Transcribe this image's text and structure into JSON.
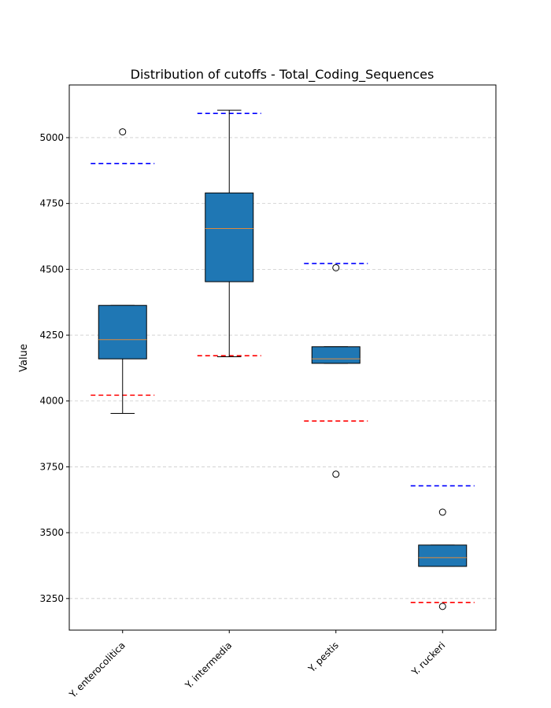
{
  "chart_data": {
    "type": "box",
    "title": "Distribution of cutoffs - Total_Coding_Sequences",
    "xlabel": "",
    "ylabel": "Value",
    "ylim": [
      3130,
      5200
    ],
    "yticks": [
      3250,
      3500,
      3750,
      4000,
      4250,
      4500,
      4750,
      5000
    ],
    "grid": "horizontal dashed",
    "colors": {
      "box_fill": "#1f77b4",
      "median": "#e08a3c",
      "upper_cutoff": "#0000ff",
      "lower_cutoff": "#ff0000",
      "grid": "#cccccc"
    },
    "categories": [
      "Y. enterocolitica",
      "Y. intermedia",
      "Y. pestis",
      "Y. ruckeri"
    ],
    "boxes": [
      {
        "label": "Y. enterocolitica",
        "whisker_low": 3953,
        "q1": 4160,
        "median": 4233,
        "q3": 4363,
        "whisker_high": 4363,
        "outliers": [
          5022
        ],
        "upper_cutoff": 4902,
        "lower_cutoff": 4022
      },
      {
        "label": "Y. intermedia",
        "whisker_low": 4168,
        "q1": 4453,
        "median": 4655,
        "q3": 4790,
        "whisker_high": 5104,
        "outliers": [],
        "upper_cutoff": 5092,
        "lower_cutoff": 4172
      },
      {
        "label": "Y. pestis",
        "whisker_low": 4143,
        "q1": 4143,
        "median": 4160,
        "q3": 4206,
        "whisker_high": 4206,
        "outliers": [
          4506,
          3722
        ],
        "upper_cutoff": 4522,
        "lower_cutoff": 3924
      },
      {
        "label": "Y. ruckeri",
        "whisker_low": 3372,
        "q1": 3372,
        "median": 3405,
        "q3": 3453,
        "whisker_high": 3453,
        "outliers": [
          3578,
          3220
        ],
        "upper_cutoff": 3678,
        "lower_cutoff": 3235
      }
    ]
  }
}
